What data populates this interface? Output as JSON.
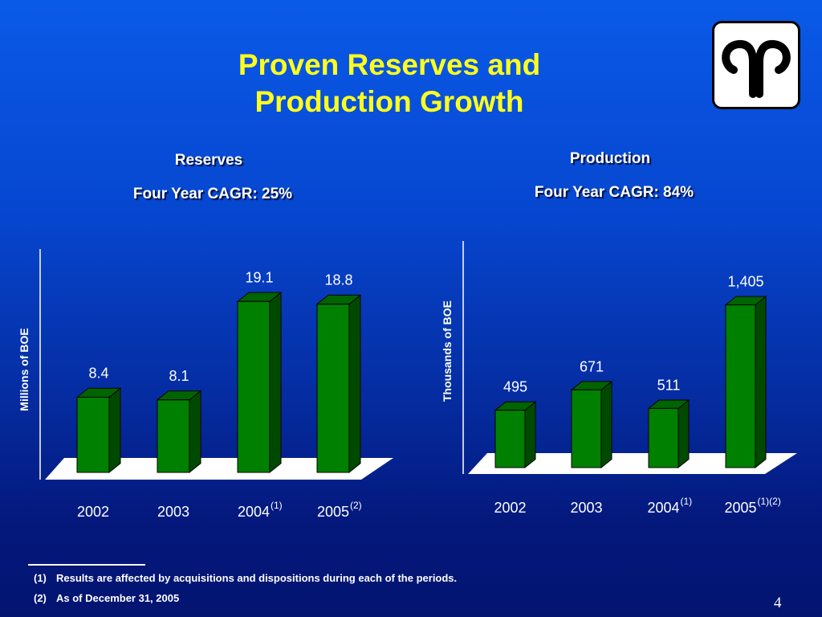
{
  "slide": {
    "title_line1": "Proven Reserves and",
    "title_line2": "Production Growth",
    "title_color": "#ffff1e",
    "logo_icon": "company-logo-icon",
    "page_number": "4"
  },
  "footnotes": [
    {
      "marker": "(1)",
      "text": "Results are affected by acquisitions and dispositions during each of the periods."
    },
    {
      "marker": "(2)",
      "text": "As of December 31, 2005"
    }
  ],
  "chart_data": [
    {
      "type": "bar",
      "title": "Reserves",
      "subtitle": "Four Year CAGR: 25%",
      "xlabel": "",
      "ylabel": "Millions of BOE",
      "categories": [
        "2002",
        "2003",
        "2004",
        "2005"
      ],
      "category_notes": [
        "",
        "",
        "(1)",
        "(2)"
      ],
      "values": [
        8.4,
        8.1,
        19.1,
        18.8
      ],
      "value_labels": [
        "8.4",
        "8.1",
        "19.1",
        "18.8"
      ],
      "ylim": [
        0,
        22
      ],
      "grid": false,
      "bar_color": "#008000"
    },
    {
      "type": "bar",
      "title": "Production",
      "subtitle": "Four Year CAGR: 84%",
      "xlabel": "",
      "ylabel": "Thousands of BOE",
      "categories": [
        "2002",
        "2003",
        "2004",
        "2005"
      ],
      "category_notes": [
        "",
        "",
        "(1)",
        "(1)(2)"
      ],
      "values": [
        495,
        671,
        511,
        1405
      ],
      "value_labels": [
        "495",
        "671",
        "511",
        "1,405"
      ],
      "ylim": [
        0,
        1700
      ],
      "grid": false,
      "bar_color": "#008000"
    }
  ]
}
